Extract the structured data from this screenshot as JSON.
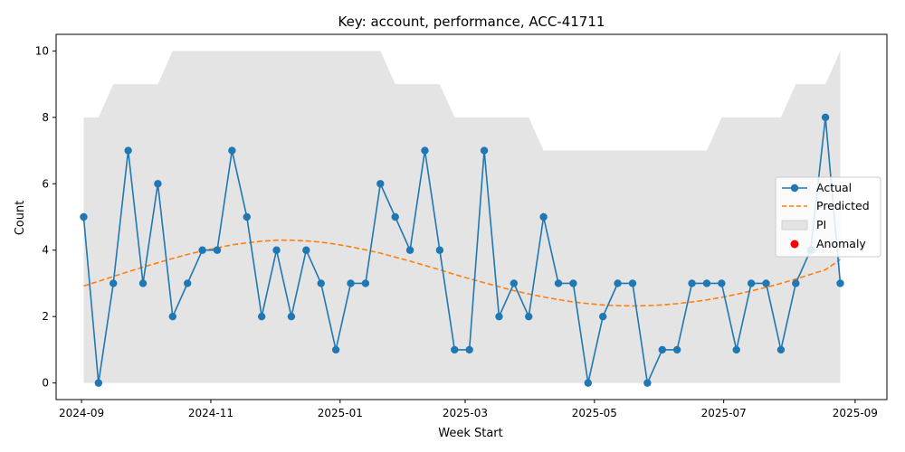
{
  "chart_data": {
    "type": "line",
    "title": "Key: account, performance, ACC-41711",
    "xlabel": "Week Start",
    "ylabel": "Count",
    "xlim": [
      "2024-08-20",
      "2025-09-16"
    ],
    "ylim": [
      -0.5,
      10.5
    ],
    "x_ticks": [
      "2024-09",
      "2024-11",
      "2025-01",
      "2025-03",
      "2025-05",
      "2025-07",
      "2025-09"
    ],
    "y_ticks": [
      0,
      2,
      4,
      6,
      8,
      10
    ],
    "grid": false,
    "legend_position": "center-right",
    "x": [
      "2024-09-02",
      "2024-09-09",
      "2024-09-16",
      "2024-09-23",
      "2024-09-30",
      "2024-10-07",
      "2024-10-14",
      "2024-10-21",
      "2024-10-28",
      "2024-11-04",
      "2024-11-11",
      "2024-11-18",
      "2024-11-25",
      "2024-12-02",
      "2024-12-09",
      "2024-12-16",
      "2024-12-23",
      "2024-12-30",
      "2025-01-06",
      "2025-01-13",
      "2025-01-20",
      "2025-01-27",
      "2025-02-03",
      "2025-02-10",
      "2025-02-17",
      "2025-02-24",
      "2025-03-03",
      "2025-03-10",
      "2025-03-17",
      "2025-03-24",
      "2025-03-31",
      "2025-04-07",
      "2025-04-14",
      "2025-04-21",
      "2025-04-28",
      "2025-05-05",
      "2025-05-12",
      "2025-05-19",
      "2025-05-26",
      "2025-06-02",
      "2025-06-09",
      "2025-06-16",
      "2025-06-23",
      "2025-06-30",
      "2025-07-07",
      "2025-07-14",
      "2025-07-21",
      "2025-07-28",
      "2025-08-04",
      "2025-08-11",
      "2025-08-18",
      "2025-08-25"
    ],
    "series": [
      {
        "name": "Actual",
        "style": "line-marker",
        "color": "#1f77b4",
        "values": [
          5,
          0,
          3,
          7,
          3,
          6,
          2,
          3,
          4,
          4,
          7,
          5,
          2,
          4,
          2,
          4,
          3,
          1,
          3,
          3,
          6,
          5,
          4,
          7,
          4,
          1,
          1,
          7,
          2,
          3,
          2,
          5,
          3,
          3,
          0,
          2,
          3,
          3,
          0,
          1,
          1,
          3,
          3,
          3,
          1,
          3,
          3,
          1,
          3,
          4,
          8,
          3
        ]
      },
      {
        "name": "Predicted",
        "style": "dashed",
        "color": "#ff7f0e",
        "values": [
          2.92,
          3.06,
          3.21,
          3.35,
          3.49,
          3.62,
          3.75,
          3.87,
          3.98,
          4.07,
          4.16,
          4.22,
          4.27,
          4.3,
          4.3,
          4.28,
          4.24,
          4.18,
          4.1,
          4.01,
          3.91,
          3.79,
          3.67,
          3.54,
          3.41,
          3.27,
          3.14,
          3.02,
          2.9,
          2.78,
          2.68,
          2.59,
          2.51,
          2.44,
          2.39,
          2.35,
          2.33,
          2.32,
          2.33,
          2.35,
          2.39,
          2.44,
          2.5,
          2.58,
          2.67,
          2.77,
          2.88,
          3.0,
          3.13,
          3.27,
          3.41,
          3.72
        ]
      }
    ],
    "interval": {
      "name": "PI",
      "color": "#e4e4e4",
      "lower": [
        0,
        0,
        0,
        0,
        0,
        0,
        0,
        0,
        0,
        0,
        0,
        0,
        0,
        0,
        0,
        0,
        0,
        0,
        0,
        0,
        0,
        0,
        0,
        0,
        0,
        0,
        0,
        0,
        0,
        0,
        0,
        0,
        0,
        0,
        0,
        0,
        0,
        0,
        0,
        0,
        0,
        0,
        0,
        0,
        0,
        0,
        0,
        0,
        0,
        0,
        0,
        0
      ],
      "upper": [
        8,
        8,
        9,
        9,
        9,
        9,
        10,
        10,
        10,
        10,
        10,
        10,
        10,
        10,
        10,
        10,
        10,
        10,
        10,
        10,
        10,
        9,
        9,
        9,
        9,
        8,
        8,
        8,
        8,
        8,
        8,
        7,
        7,
        7,
        7,
        7,
        7,
        7,
        7,
        7,
        7,
        7,
        7,
        8,
        8,
        8,
        8,
        8,
        9,
        9,
        9,
        10
      ]
    },
    "anomalies": {
      "name": "Anomaly",
      "color": "#ff0000",
      "points": []
    },
    "legend": [
      "Actual",
      "Predicted",
      "PI",
      "Anomaly"
    ]
  }
}
